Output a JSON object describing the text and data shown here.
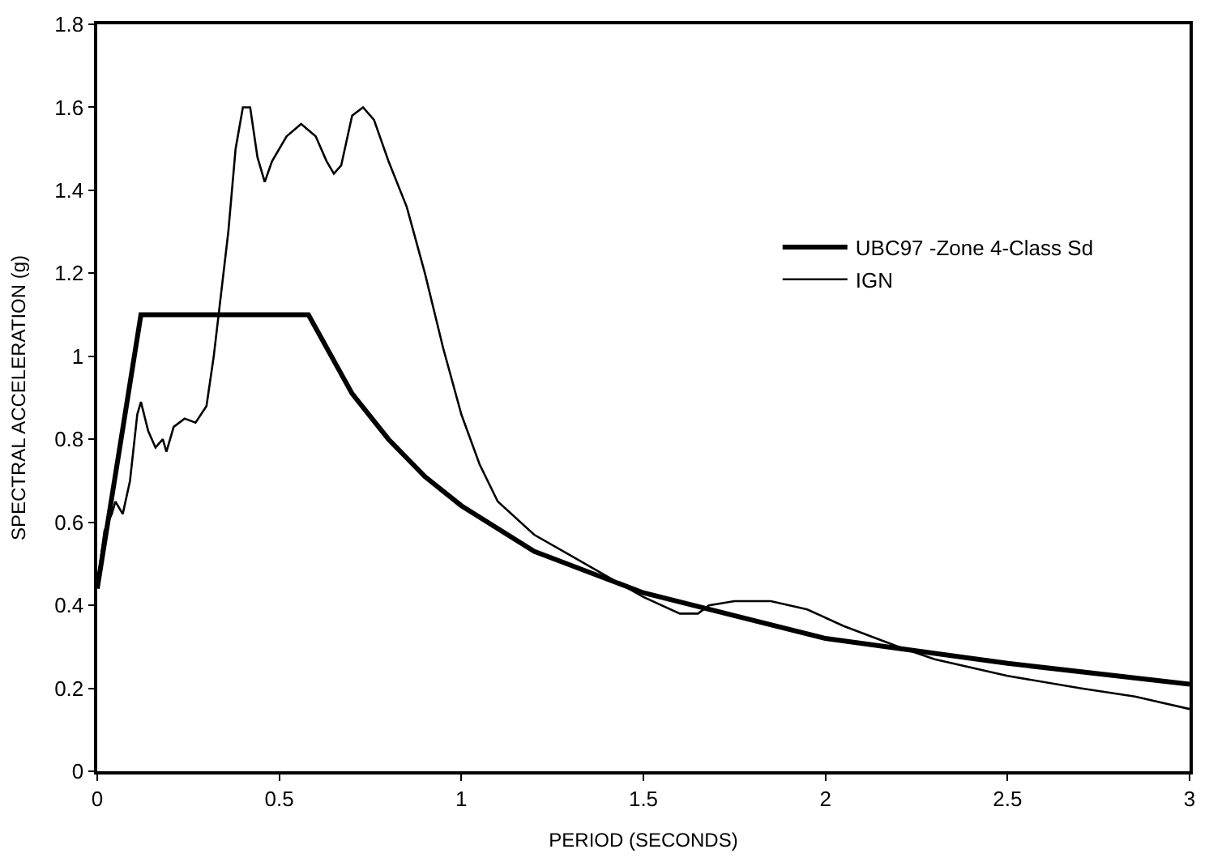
{
  "chart_data": {
    "type": "line",
    "xlabel": "PERIOD (SECONDS)",
    "ylabel": "SPECTRAL ACCELERATION (g)",
    "xlim": [
      0,
      3
    ],
    "xticks": [
      0,
      0.5,
      1,
      1.5,
      2,
      2.5,
      3
    ],
    "ylim": [
      0,
      1.8
    ],
    "yticks": [
      0,
      0.2,
      0.4,
      0.6,
      0.8,
      1,
      1.2,
      1.4,
      1.6,
      1.8
    ],
    "legend": "right",
    "marker": "none",
    "line_style": "solid",
    "series": [
      {
        "name": "UBC97 -Zone 4-Class Sd",
        "color": "#000000",
        "x": [
          0,
          0.12,
          0.58,
          0.7,
          0.8,
          0.9,
          1.0,
          1.2,
          1.5,
          2.0,
          2.5,
          3.0
        ],
        "values": [
          0.44,
          1.1,
          1.1,
          0.91,
          0.8,
          0.71,
          0.64,
          0.53,
          0.43,
          0.32,
          0.26,
          0.21
        ]
      },
      {
        "name": "IGN",
        "color": "#000000",
        "x": [
          0,
          0.02,
          0.04,
          0.05,
          0.07,
          0.09,
          0.11,
          0.12,
          0.14,
          0.16,
          0.18,
          0.19,
          0.21,
          0.24,
          0.27,
          0.3,
          0.32,
          0.34,
          0.36,
          0.38,
          0.4,
          0.42,
          0.44,
          0.46,
          0.48,
          0.52,
          0.56,
          0.6,
          0.63,
          0.65,
          0.67,
          0.7,
          0.73,
          0.76,
          0.8,
          0.85,
          0.9,
          0.95,
          1.0,
          1.05,
          1.1,
          1.2,
          1.3,
          1.4,
          1.5,
          1.6,
          1.65,
          1.68,
          1.75,
          1.85,
          1.95,
          2.05,
          2.2,
          2.3,
          2.5,
          2.7,
          2.85,
          3.0
        ],
        "values": [
          0.45,
          0.58,
          0.62,
          0.65,
          0.62,
          0.7,
          0.86,
          0.89,
          0.82,
          0.78,
          0.8,
          0.77,
          0.83,
          0.85,
          0.84,
          0.88,
          1.0,
          1.15,
          1.3,
          1.5,
          1.6,
          1.6,
          1.48,
          1.42,
          1.47,
          1.53,
          1.56,
          1.53,
          1.47,
          1.44,
          1.46,
          1.58,
          1.6,
          1.57,
          1.47,
          1.36,
          1.2,
          1.02,
          0.86,
          0.74,
          0.65,
          0.57,
          0.52,
          0.47,
          0.42,
          0.38,
          0.38,
          0.4,
          0.41,
          0.41,
          0.39,
          0.35,
          0.3,
          0.27,
          0.23,
          0.2,
          0.18,
          0.15
        ]
      }
    ]
  }
}
